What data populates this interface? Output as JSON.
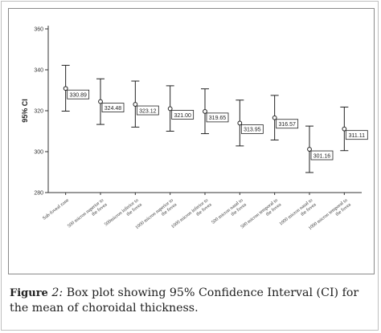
{
  "caption": {
    "label": "Figure",
    "number": "2:",
    "text": "Box plot showing 95% Confidence Interval (CI) for the mean of choroidal thickness."
  },
  "chart_data": {
    "type": "errorbar",
    "ylabel": "95% CI",
    "ylim": [
      280,
      360
    ],
    "yticks": [
      280,
      300,
      320,
      340,
      360
    ],
    "grid": false,
    "categories": [
      "Sub-foveal zone",
      "500 micron superior to the fovea",
      "500micron inferior to the fovea",
      "1000 micron superior to the fovea",
      "1000 micron inferior to the fovea",
      "500 micron nasal to the fovea",
      "500 micron temporal to the fovea",
      "1000 micron nasal to the fovea",
      "1000 micron temporal to the fovea"
    ],
    "means": [
      330.89,
      324.48,
      323.12,
      321.0,
      319.65,
      313.95,
      316.57,
      301.16,
      311.11
    ],
    "mean_labels": [
      "330.89",
      "324.48",
      "323.12",
      "321.00",
      "319.65",
      "313.95",
      "316.57",
      "301.16",
      "311.11"
    ],
    "lower": [
      319.8,
      313.3,
      312.0,
      310.0,
      308.8,
      302.8,
      305.7,
      289.8,
      300.5
    ],
    "upper": [
      342.2,
      335.6,
      334.5,
      332.2,
      330.7,
      325.2,
      327.5,
      312.5,
      321.8
    ]
  }
}
